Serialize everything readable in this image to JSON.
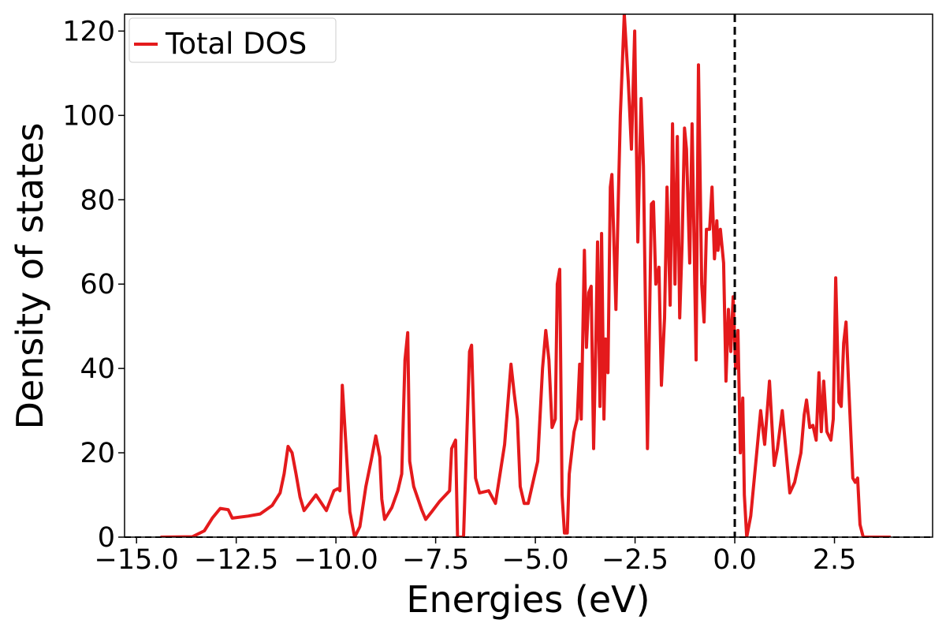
{
  "chart_data": {
    "type": "line",
    "xlabel": "Energies (eV)",
    "ylabel": "Density of states",
    "xlim": [
      -15.3,
      4.96
    ],
    "ylim": [
      0,
      124
    ],
    "xticks": [
      {
        "value": -15,
        "label": "−15.0"
      },
      {
        "value": -12.5,
        "label": "−12.5"
      },
      {
        "value": -10,
        "label": "−10.0"
      },
      {
        "value": -7.5,
        "label": "−7.5"
      },
      {
        "value": -5,
        "label": "−5.0"
      },
      {
        "value": -2.5,
        "label": "−2.5"
      },
      {
        "value": 0,
        "label": "0.0"
      },
      2.5
    ],
    "yticks": [
      0,
      20,
      40,
      60,
      80,
      100,
      120
    ],
    "fermi_level": 0,
    "legend": "upper left",
    "series": [
      {
        "name": "Total DOS",
        "color": "#e41a1c",
        "x": [
          -14.4,
          -13.6,
          -13.3,
          -13.1,
          -12.9,
          -12.7,
          -12.6,
          -12.2,
          -11.9,
          -11.6,
          -11.4,
          -11.3,
          -11.2,
          -11.1,
          -11.0,
          -10.9,
          -10.8,
          -10.5,
          -10.24,
          -10.05,
          -9.95,
          -9.9,
          -9.84,
          -9.75,
          -9.65,
          -9.53,
          -9.4,
          -9.25,
          -9.1,
          -9.0,
          -8.9,
          -8.85,
          -8.78,
          -8.6,
          -8.45,
          -8.35,
          -8.27,
          -8.2,
          -8.15,
          -8.05,
          -7.85,
          -7.75,
          -7.6,
          -7.4,
          -7.15,
          -7.1,
          -7.0,
          -6.95,
          -6.8,
          -6.65,
          -6.6,
          -6.5,
          -6.4,
          -6.17,
          -6.0,
          -5.77,
          -5.61,
          -5.53,
          -5.45,
          -5.38,
          -5.28,
          -5.18,
          -4.94,
          -4.82,
          -4.74,
          -4.66,
          -4.58,
          -4.5,
          -4.45,
          -4.39,
          -4.33,
          -4.27,
          -4.2,
          -4.15,
          -4.03,
          -3.95,
          -3.89,
          -3.85,
          -3.77,
          -3.72,
          -3.66,
          -3.6,
          -3.54,
          -3.48,
          -3.44,
          -3.38,
          -3.34,
          -3.28,
          -3.24,
          -3.18,
          -3.12,
          -3.08,
          -2.98,
          -2.92,
          -2.87,
          -2.77,
          -2.67,
          -2.59,
          -2.51,
          -2.43,
          -2.35,
          -2.29,
          -2.19,
          -2.09,
          -2.04,
          -1.98,
          -1.9,
          -1.84,
          -1.76,
          -1.7,
          -1.62,
          -1.56,
          -1.5,
          -1.44,
          -1.38,
          -1.32,
          -1.26,
          -1.21,
          -1.13,
          -1.07,
          -0.97,
          -0.91,
          -0.83,
          -0.77,
          -0.71,
          -0.63,
          -0.57,
          -0.51,
          -0.45,
          -0.42,
          -0.36,
          -0.28,
          -0.22,
          -0.16,
          -0.1,
          -0.04,
          0.02,
          0.08,
          0.14,
          0.2,
          0.24,
          0.3,
          0.4,
          0.55,
          0.65,
          0.75,
          0.87,
          0.99,
          1.07,
          1.19,
          1.26,
          1.38,
          1.5,
          1.66,
          1.74,
          1.8,
          1.88,
          1.96,
          2.04,
          2.11,
          2.17,
          2.23,
          2.31,
          2.41,
          2.47,
          2.53,
          2.61,
          2.67,
          2.73,
          2.79,
          2.85,
          2.96,
          3.02,
          3.08,
          3.14,
          3.22,
          3.91
        ],
        "values": [
          0,
          0.1,
          1.5,
          4.5,
          6.8,
          6.5,
          4.5,
          5.0,
          5.5,
          7.5,
          10.5,
          15,
          21.5,
          20,
          15,
          9.5,
          6.3,
          10,
          6.3,
          11,
          11.5,
          11,
          36,
          22,
          6,
          0,
          2.5,
          12,
          19,
          24,
          19,
          9,
          4.2,
          7,
          11,
          15,
          42,
          48.5,
          18,
          12,
          6.5,
          4.2,
          6,
          8.5,
          11,
          21,
          23,
          0,
          0,
          44,
          45.5,
          14,
          10.5,
          11,
          8,
          22,
          41,
          34,
          28,
          12,
          8,
          8,
          18,
          40,
          49,
          42,
          26,
          28,
          60,
          63.5,
          10,
          1,
          1,
          15,
          25,
          28,
          41,
          28,
          68,
          45,
          58,
          59.5,
          21,
          48,
          70,
          31,
          72,
          28,
          47,
          39,
          83,
          86,
          54,
          80,
          100,
          124,
          108,
          92,
          120,
          70,
          104,
          88,
          21,
          79,
          79.5,
          60,
          64,
          36,
          52,
          83,
          55,
          98,
          60,
          95,
          52,
          70,
          97,
          92,
          65,
          98,
          42,
          112,
          60,
          51,
          73,
          73,
          83,
          66,
          75,
          68,
          73,
          65,
          37,
          54,
          44,
          57,
          40,
          49,
          20,
          33,
          10,
          0,
          5,
          20,
          30,
          22,
          37,
          17,
          21,
          30,
          23,
          10.5,
          13,
          20,
          29,
          32.5,
          26,
          26.5,
          23,
          39,
          25,
          37,
          25,
          23,
          28,
          61.5,
          32,
          31,
          46,
          51,
          37,
          14,
          13,
          14,
          3,
          0,
          0
        ]
      }
    ]
  }
}
